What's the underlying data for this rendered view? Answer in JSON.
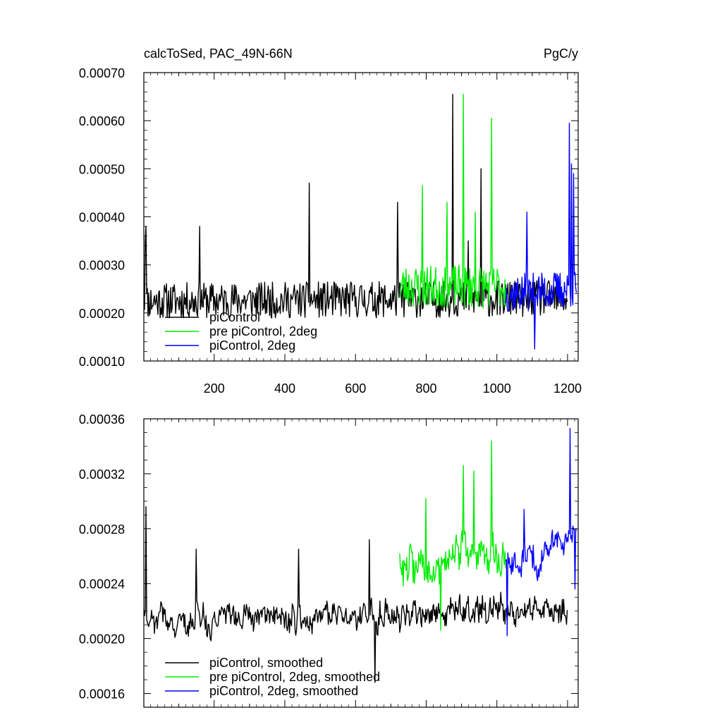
{
  "chart_data": [
    {
      "type": "line",
      "title": "calcToSed, PAC_49N-66N",
      "units": "PgC/y",
      "xlim": [
        1,
        1230
      ],
      "ylim": [
        0.0001,
        0.0007
      ],
      "x_ticks": [
        "200",
        "400",
        "600",
        "800",
        "1000",
        "1200"
      ],
      "y_ticks": [
        "0.00010",
        "0.00020",
        "0.00030",
        "0.00040",
        "0.00050",
        "0.00060",
        "0.00070"
      ],
      "grid": false,
      "legend_position": "bottom-left",
      "legend": [
        "piControl",
        "pre piControl, 2deg",
        "piControl, 2deg"
      ],
      "series": [
        {
          "name": "piControl",
          "color": "#000000",
          "x_range": [
            1,
            1200
          ],
          "base": 0.000225,
          "trend_end": 0.00023,
          "noise": 3.8e-05,
          "peaks": [
            [
              5,
              0.00035
            ],
            [
              8,
              0.00038
            ],
            [
              160,
              0.00038
            ],
            [
              470,
              0.00047
            ],
            [
              720,
              0.00043
            ],
            [
              876,
              0.000655
            ],
            [
              920,
              0.00035
            ],
            [
              955,
              0.0005
            ]
          ]
        },
        {
          "name": "pre piControl, 2deg",
          "color": "#00ee00",
          "x_range": [
            725,
            1025
          ],
          "base": 0.000255,
          "trend_end": 0.000255,
          "noise": 4.5e-05,
          "peaks": [
            [
              790,
              0.000465
            ],
            [
              860,
              0.00043
            ],
            [
              905,
              0.000655
            ],
            [
              985,
              0.000605
            ],
            [
              940,
              0.00041
            ]
          ]
        },
        {
          "name": "piControl, 2deg",
          "color": "#0000ff",
          "x_range": [
            1025,
            1225
          ],
          "base": 0.00024,
          "trend_end": 0.00025,
          "noise": 4e-05,
          "peaks": [
            [
              1085,
              0.00041
            ],
            [
              1205,
              0.000595
            ],
            [
              1212,
              0.00051
            ],
            [
              1218,
              0.00049
            ],
            [
              1108,
              0.000125
            ]
          ]
        }
      ]
    },
    {
      "type": "line",
      "xlim": [
        1,
        1230
      ],
      "ylim": [
        0.00015,
        0.00036
      ],
      "y_ticks": [
        "0.00016",
        "0.00020",
        "0.00024",
        "0.00028",
        "0.00032",
        "0.00036"
      ],
      "grid": false,
      "legend_position": "bottom-left",
      "legend": [
        "piControl, smoothed",
        "pre piControl, 2deg, smoothed",
        "piControl, 2deg, smoothed"
      ],
      "series": [
        {
          "name": "piControl, smoothed",
          "color": "#000000",
          "x_range": [
            1,
            1200
          ],
          "base": 0.000212,
          "trend_end": 0.000222,
          "noise": 1.6e-05,
          "peaks": [
            [
              7,
              0.000296
            ],
            [
              150,
              0.000265
            ],
            [
              640,
              0.000272
            ],
            [
              655,
              0.000168
            ],
            [
              440,
              0.000265
            ]
          ]
        },
        {
          "name": "pre piControl, 2deg, smoothed",
          "color": "#00ee00",
          "x_range": [
            725,
            1025
          ],
          "base": 0.000255,
          "trend_end": 0.000262,
          "noise": 2.2e-05,
          "peaks": [
            [
              800,
              0.000302
            ],
            [
              905,
              0.000326
            ],
            [
              985,
              0.000344
            ],
            [
              935,
              0.000322
            ],
            [
              842,
              0.000206
            ]
          ]
        },
        {
          "name": "piControl, 2deg, smoothed",
          "color": "#0000ff",
          "x_range": [
            1025,
            1225
          ],
          "base": 0.00025,
          "trend_end": 0.000275,
          "noise": 1.8e-05,
          "peaks": [
            [
              1078,
              0.000294
            ],
            [
              1208,
              0.000353
            ],
            [
              1222,
              0.000236
            ],
            [
              1030,
              0.000202
            ]
          ]
        }
      ]
    }
  ]
}
